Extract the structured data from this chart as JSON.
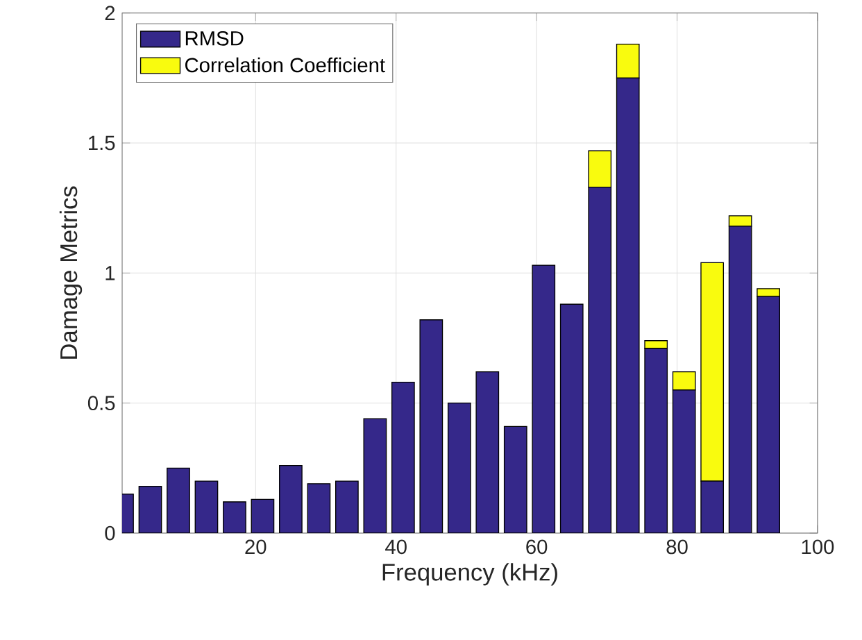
{
  "chart_data": {
    "type": "bar",
    "stacked": true,
    "xlabel": "Frequency (kHz)",
    "ylabel": "Damage Metrics",
    "x": [
      1,
      5,
      9,
      13,
      17,
      21,
      25,
      29,
      33,
      37,
      41,
      45,
      49,
      53,
      57,
      61,
      65,
      69,
      73,
      77,
      81,
      85,
      89,
      93
    ],
    "series": [
      {
        "name": "RMSD",
        "color": "#35288a",
        "values": [
          0.15,
          0.18,
          0.25,
          0.2,
          0.12,
          0.13,
          0.26,
          0.19,
          0.2,
          0.44,
          0.58,
          0.82,
          0.5,
          0.62,
          0.41,
          1.03,
          0.88,
          1.33,
          1.75,
          0.71,
          0.55,
          0.2,
          1.18,
          0.91
        ]
      },
      {
        "name": "Correlation Coefficient",
        "color": "#f9fb0e",
        "values": [
          0,
          0,
          0,
          0,
          0,
          0,
          0,
          0,
          0,
          0,
          0,
          0,
          0,
          0,
          0,
          0,
          0,
          0.14,
          0.13,
          0.03,
          0.07,
          0.84,
          0.04,
          0.03
        ]
      }
    ],
    "xlim": [
      1,
      100
    ],
    "ylim": [
      0,
      2
    ],
    "xticks": [
      20,
      40,
      60,
      80,
      100
    ],
    "yticks": [
      0,
      0.5,
      1,
      1.5,
      2
    ],
    "grid": true,
    "legend": "top left"
  }
}
